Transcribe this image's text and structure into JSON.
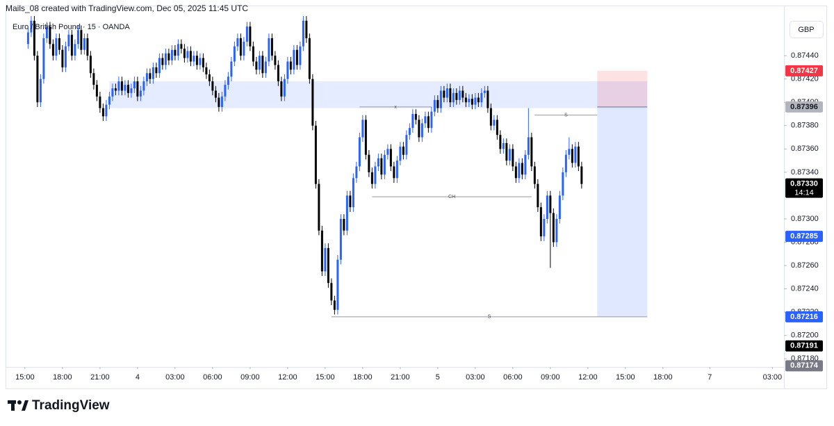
{
  "header": {
    "credit": "Mails_08 created with TradingView.com, Dec 05, 2025 11:45 UTC",
    "symbol": "Euro / British Pound · 15 · OANDA",
    "currency": "GBP",
    "logo": "TradingView"
  },
  "chart_data": {
    "type": "candlestick",
    "up_color": "#2962ff",
    "down_color": "#000000",
    "grid": false,
    "xlim": [
      -6.2,
      242.7
    ],
    "ylim": [
      0.87173,
      0.87483
    ],
    "xticks": [
      {
        "value": 0,
        "label": "15:00"
      },
      {
        "value": 12,
        "label": "18:00"
      },
      {
        "value": 24,
        "label": "21:00"
      },
      {
        "value": 36,
        "label": "4"
      },
      {
        "value": 48,
        "label": "03:00"
      },
      {
        "value": 60,
        "label": "06:00"
      },
      {
        "value": 72,
        "label": "09:00"
      },
      {
        "value": 84,
        "label": "12:00"
      },
      {
        "value": 96,
        "label": "15:00"
      },
      {
        "value": 108,
        "label": "18:00"
      },
      {
        "value": 120,
        "label": "21:00"
      },
      {
        "value": 132,
        "label": "5"
      },
      {
        "value": 144,
        "label": "03:00"
      },
      {
        "value": 156,
        "label": "06:00"
      },
      {
        "value": 168,
        "label": "09:00"
      },
      {
        "value": 180,
        "label": "12:00"
      },
      {
        "value": 192,
        "label": "15:00"
      },
      {
        "value": 204,
        "label": "18:00"
      },
      {
        "value": 219,
        "label": "7"
      },
      {
        "value": 239,
        "label": "03:00"
      }
    ],
    "yticks": [
      {
        "value": 0.8744,
        "label": "0.87440"
      },
      {
        "value": 0.8742,
        "label": "0.87420"
      },
      {
        "value": 0.874,
        "label": "0.87400"
      },
      {
        "value": 0.8738,
        "label": "0.87380"
      },
      {
        "value": 0.8736,
        "label": "0.87360"
      },
      {
        "value": 0.8734,
        "label": "0.87340"
      },
      {
        "value": 0.873,
        "label": "0.87300"
      },
      {
        "value": 0.8728,
        "label": "0.87280"
      },
      {
        "value": 0.8726,
        "label": "0.87260"
      },
      {
        "value": 0.8724,
        "label": "0.87240"
      },
      {
        "value": 0.8722,
        "label": "0.87220"
      },
      {
        "value": 0.872,
        "label": "0.87200"
      },
      {
        "value": 0.8718,
        "label": "0.87180"
      }
    ],
    "x": [
      1,
      2,
      3,
      4,
      5,
      6,
      7,
      8,
      9,
      10,
      11,
      12,
      13,
      14,
      15,
      16,
      17,
      18,
      19,
      20,
      21,
      22,
      23,
      24,
      25,
      26,
      27,
      28,
      29,
      30,
      31,
      32,
      33,
      34,
      35,
      36,
      37,
      38,
      39,
      40,
      41,
      42,
      43,
      44,
      45,
      46,
      47,
      48,
      49,
      50,
      51,
      52,
      53,
      54,
      55,
      56,
      57,
      58,
      59,
      60,
      61,
      62,
      63,
      64,
      65,
      66,
      67,
      68,
      69,
      70,
      71,
      72,
      73,
      74,
      75,
      76,
      77,
      78,
      79,
      80,
      81,
      82,
      83,
      84,
      85,
      86,
      87,
      88,
      89,
      90,
      91,
      92,
      93,
      94,
      95,
      96,
      97,
      98,
      99,
      100,
      101,
      102,
      103,
      104,
      105,
      106,
      107,
      108,
      109,
      110,
      111,
      112,
      113,
      114,
      115,
      116,
      117,
      118,
      119,
      120,
      121,
      122,
      123,
      124,
      125,
      126,
      127,
      128,
      129,
      130,
      131,
      132,
      133,
      134,
      135,
      136,
      137,
      138,
      139,
      140,
      141,
      142,
      143,
      144,
      145,
      146,
      147,
      148,
      149,
      150,
      151,
      152,
      153,
      154,
      155,
      156,
      157,
      158,
      159,
      160,
      161,
      162,
      163,
      164,
      165,
      166,
      167,
      168,
      169,
      170,
      171,
      172,
      173,
      174,
      175,
      176,
      177,
      178
    ],
    "open": [
      0.8745,
      0.8746,
      0.8747,
      0.8744,
      0.874,
      0.8742,
      0.87455,
      0.87465,
      0.8745,
      0.8744,
      0.87455,
      0.87445,
      0.8743,
      0.87448,
      0.87458,
      0.8744,
      0.8745,
      0.87462,
      0.87445,
      0.87455,
      0.8744,
      0.87425,
      0.87415,
      0.87405,
      0.87395,
      0.87388,
      0.87398,
      0.87405,
      0.87412,
      0.8741,
      0.87418,
      0.8741,
      0.87415,
      0.87408,
      0.87412,
      0.87418,
      0.87405,
      0.8741,
      0.87418,
      0.87425,
      0.8742,
      0.8743,
      0.87425,
      0.87438,
      0.87432,
      0.87442,
      0.87436,
      0.87445,
      0.8744,
      0.8745,
      0.87446,
      0.87438,
      0.87444,
      0.87435,
      0.8744,
      0.87432,
      0.87438,
      0.8743,
      0.87424,
      0.87418,
      0.8741,
      0.87404,
      0.87396,
      0.87405,
      0.87415,
      0.87422,
      0.87435,
      0.87448,
      0.87455,
      0.8744,
      0.87452,
      0.87465,
      0.87448,
      0.87435,
      0.87428,
      0.8744,
      0.87425,
      0.87435,
      0.87455,
      0.8744,
      0.87432,
      0.87418,
      0.87405,
      0.8742,
      0.87435,
      0.87428,
      0.87445,
      0.87432,
      0.87448,
      0.8747,
      0.87455,
      0.8742,
      0.8738,
      0.8733,
      0.8729,
      0.87255,
      0.87275,
      0.87245,
      0.8723,
      0.87222,
      0.87265,
      0.873,
      0.8729,
      0.8732,
      0.8731,
      0.87335,
      0.87345,
      0.8737,
      0.87385,
      0.87355,
      0.8734,
      0.8733,
      0.87345,
      0.87352,
      0.87338,
      0.87355,
      0.8736,
      0.87345,
      0.87335,
      0.8735,
      0.87362,
      0.87355,
      0.87372,
      0.87378,
      0.8739,
      0.87385,
      0.8737,
      0.87382,
      0.87388,
      0.87378,
      0.87392,
      0.87402,
      0.87395,
      0.8741,
      0.87404,
      0.87412,
      0.874,
      0.87408,
      0.87402,
      0.8741,
      0.87404,
      0.874,
      0.87403,
      0.87398,
      0.87404,
      0.874,
      0.87408,
      0.8741,
      0.87395,
      0.8738,
      0.87385,
      0.87372,
      0.8736,
      0.87365,
      0.8735,
      0.8736,
      0.87345,
      0.87335,
      0.87348,
      0.87338,
      0.87355,
      0.8737,
      0.87345,
      0.8733,
      0.8731,
      0.87285,
      0.873,
      0.8732,
      0.87305,
      0.8728,
      0.873,
      0.8732,
      0.8734,
      0.87355,
      0.8736,
      0.87348,
      0.87362,
      0.87345
    ],
    "high": [
      0.87464,
      0.87474,
      0.87474,
      0.87444,
      0.87424,
      0.87459,
      0.87469,
      0.87469,
      0.87454,
      0.87459,
      0.87459,
      0.87449,
      0.87452,
      0.87462,
      0.87462,
      0.87454,
      0.87466,
      0.87466,
      0.87459,
      0.87459,
      0.87444,
      0.87429,
      0.87419,
      0.87409,
      0.87399,
      0.87402,
      0.87409,
      0.87416,
      0.87416,
      0.87422,
      0.87422,
      0.87419,
      0.87419,
      0.87416,
      0.87422,
      0.87422,
      0.87414,
      0.87422,
      0.87429,
      0.87429,
      0.87434,
      0.87434,
      0.87442,
      0.87442,
      0.87446,
      0.87446,
      0.87449,
      0.87449,
      0.87454,
      0.87454,
      0.8745,
      0.87448,
      0.87448,
      0.87444,
      0.87444,
      0.87442,
      0.87442,
      0.87434,
      0.87428,
      0.87422,
      0.87414,
      0.87408,
      0.87409,
      0.87419,
      0.87426,
      0.87439,
      0.87452,
      0.87459,
      0.87459,
      0.87456,
      0.87469,
      0.87469,
      0.87452,
      0.87439,
      0.87444,
      0.87444,
      0.87439,
      0.87459,
      0.87459,
      0.87444,
      0.87436,
      0.87422,
      0.87424,
      0.87439,
      0.87439,
      0.87449,
      0.87449,
      0.87452,
      0.87474,
      0.87474,
      0.87459,
      0.87424,
      0.87384,
      0.87334,
      0.87294,
      0.87279,
      0.87279,
      0.87249,
      0.87234,
      0.87269,
      0.87304,
      0.87304,
      0.87324,
      0.87324,
      0.87339,
      0.87349,
      0.87374,
      0.87389,
      0.87389,
      0.87359,
      0.87344,
      0.87349,
      0.87356,
      0.87356,
      0.87359,
      0.87364,
      0.87364,
      0.87349,
      0.87354,
      0.87366,
      0.87366,
      0.87376,
      0.87382,
      0.87394,
      0.87394,
      0.87389,
      0.87386,
      0.87392,
      0.87392,
      0.87396,
      0.87406,
      0.87406,
      0.87414,
      0.87414,
      0.87416,
      0.87416,
      0.87412,
      0.87412,
      0.87414,
      0.87414,
      0.87408,
      0.87407,
      0.87407,
      0.87408,
      0.87408,
      0.87412,
      0.87414,
      0.87414,
      0.87399,
      0.87389,
      0.87389,
      0.87376,
      0.87369,
      0.87369,
      0.87364,
      0.87364,
      0.87349,
      0.87352,
      0.87352,
      0.87359,
      0.87395,
      0.87374,
      0.87349,
      0.87334,
      0.87314,
      0.87304,
      0.87324,
      0.87324,
      0.87309,
      0.87304,
      0.87324,
      0.87344,
      0.87359,
      0.8737,
      0.87364,
      0.87366,
      0.87366,
      0.87349
    ],
    "low": [
      0.87446,
      0.87456,
      0.87436,
      0.87396,
      0.87396,
      0.87416,
      0.87451,
      0.87446,
      0.87436,
      0.87436,
      0.87441,
      0.87426,
      0.87426,
      0.87444,
      0.87436,
      0.87436,
      0.87446,
      0.87441,
      0.87441,
      0.87436,
      0.87421,
      0.87411,
      0.87401,
      0.87391,
      0.87384,
      0.87384,
      0.87394,
      0.87401,
      0.87406,
      0.87406,
      0.87406,
      0.87406,
      0.87404,
      0.87404,
      0.87408,
      0.87401,
      0.87401,
      0.87406,
      0.87414,
      0.87416,
      0.87416,
      0.87421,
      0.87421,
      0.87428,
      0.87428,
      0.87432,
      0.87432,
      0.87436,
      0.87436,
      0.87442,
      0.87434,
      0.87434,
      0.87431,
      0.87431,
      0.87428,
      0.87428,
      0.87426,
      0.8742,
      0.87414,
      0.87406,
      0.874,
      0.87392,
      0.87392,
      0.87401,
      0.87411,
      0.87418,
      0.87431,
      0.87444,
      0.87436,
      0.87436,
      0.87448,
      0.87444,
      0.87431,
      0.87424,
      0.87424,
      0.87421,
      0.87421,
      0.87431,
      0.87436,
      0.87428,
      0.87414,
      0.87401,
      0.87401,
      0.87416,
      0.87424,
      0.87424,
      0.87428,
      0.87428,
      0.87444,
      0.87451,
      0.87416,
      0.87376,
      0.87326,
      0.87286,
      0.87251,
      0.87251,
      0.87241,
      0.87226,
      0.87218,
      0.87218,
      0.87261,
      0.87286,
      0.87286,
      0.87306,
      0.87306,
      0.87331,
      0.87341,
      0.87366,
      0.87351,
      0.87336,
      0.87326,
      0.87326,
      0.87341,
      0.87334,
      0.87334,
      0.87351,
      0.87341,
      0.87331,
      0.87331,
      0.87346,
      0.87351,
      0.87351,
      0.87368,
      0.87374,
      0.87381,
      0.87366,
      0.87366,
      0.87378,
      0.87374,
      0.87374,
      0.87388,
      0.87391,
      0.87391,
      0.874,
      0.874,
      0.87396,
      0.87396,
      0.87398,
      0.87398,
      0.874,
      0.87396,
      0.87396,
      0.87394,
      0.87394,
      0.87396,
      0.87396,
      0.87404,
      0.87391,
      0.87376,
      0.87376,
      0.87368,
      0.87356,
      0.87356,
      0.87346,
      0.87346,
      0.87341,
      0.87331,
      0.87331,
      0.87334,
      0.87334,
      0.87351,
      0.87341,
      0.87326,
      0.87306,
      0.87281,
      0.87281,
      0.87296,
      0.87258,
      0.87276,
      0.87276,
      0.87296,
      0.87316,
      0.87336,
      0.87351,
      0.87344,
      0.87344,
      0.87341,
      0.87326
    ],
    "close": [
      0.8746,
      0.8747,
      0.8744,
      0.874,
      0.8742,
      0.87455,
      0.87465,
      0.8745,
      0.8744,
      0.87455,
      0.87445,
      0.8743,
      0.87448,
      0.87458,
      0.8744,
      0.8745,
      0.87462,
      0.87445,
      0.87455,
      0.8744,
      0.87425,
      0.87415,
      0.87405,
      0.87395,
      0.87388,
      0.87398,
      0.87405,
      0.87412,
      0.8741,
      0.87418,
      0.8741,
      0.87415,
      0.87408,
      0.87412,
      0.87418,
      0.87405,
      0.8741,
      0.87418,
      0.87425,
      0.8742,
      0.8743,
      0.87425,
      0.87438,
      0.87432,
      0.87442,
      0.87436,
      0.87445,
      0.8744,
      0.8745,
      0.87446,
      0.87438,
      0.87444,
      0.87435,
      0.8744,
      0.87432,
      0.87438,
      0.8743,
      0.87424,
      0.87418,
      0.8741,
      0.87404,
      0.87396,
      0.87405,
      0.87415,
      0.87422,
      0.87435,
      0.87448,
      0.87455,
      0.8744,
      0.87452,
      0.87465,
      0.87448,
      0.87435,
      0.87428,
      0.8744,
      0.87425,
      0.87435,
      0.87455,
      0.8744,
      0.87432,
      0.87418,
      0.87405,
      0.8742,
      0.87435,
      0.87428,
      0.87445,
      0.87432,
      0.87448,
      0.8747,
      0.87455,
      0.8742,
      0.8738,
      0.8733,
      0.8729,
      0.87255,
      0.87275,
      0.87245,
      0.8723,
      0.87222,
      0.87265,
      0.873,
      0.8729,
      0.8732,
      0.8731,
      0.87335,
      0.87345,
      0.8737,
      0.87385,
      0.87355,
      0.8734,
      0.8733,
      0.87345,
      0.87352,
      0.87338,
      0.87355,
      0.8736,
      0.87345,
      0.87335,
      0.8735,
      0.87362,
      0.87355,
      0.87372,
      0.87378,
      0.8739,
      0.87385,
      0.8737,
      0.87382,
      0.87388,
      0.87378,
      0.87392,
      0.87402,
      0.87395,
      0.8741,
      0.87404,
      0.87412,
      0.874,
      0.87408,
      0.87402,
      0.8741,
      0.87404,
      0.874,
      0.87403,
      0.87398,
      0.87404,
      0.874,
      0.87408,
      0.8741,
      0.87395,
      0.8738,
      0.87385,
      0.87372,
      0.8736,
      0.87365,
      0.8735,
      0.8736,
      0.87345,
      0.87335,
      0.87348,
      0.87338,
      0.87355,
      0.8737,
      0.87345,
      0.8733,
      0.8731,
      0.87285,
      0.873,
      0.8732,
      0.87305,
      0.8728,
      0.873,
      0.8732,
      0.8734,
      0.87355,
      0.8736,
      0.87348,
      0.87362,
      0.87345,
      0.8733
    ],
    "zone": {
      "x": [
        27,
        199
      ],
      "prices": [
        0.87418,
        0.87395
      ],
      "color": "#2962ff"
    },
    "levels": [
      {
        "label": "x",
        "price": 0.87396,
        "x": [
          107,
          130
        ]
      },
      {
        "label": "S",
        "price": 0.87389,
        "x": [
          163,
          183
        ]
      },
      {
        "label": "CH",
        "price": 0.87319,
        "x": [
          111,
          162
        ]
      },
      {
        "label": "S",
        "price": 0.87216,
        "x": [
          98,
          199
        ]
      }
    ],
    "position": {
      "x": [
        183,
        199
      ],
      "stop": 0.87427,
      "entry": 0.87396,
      "target": 0.87216
    },
    "price_labels": [
      {
        "value": 0.87427,
        "label": "0.87427",
        "color": "#f23645",
        "text_color": "#ffffff"
      },
      {
        "value": 0.87396,
        "label": "0.87396",
        "color": "#b2b5be",
        "text_color": "#131722"
      },
      {
        "value": 0.8733,
        "label": "0.87330",
        "sub": "14:14",
        "color": "#000000",
        "text_color": "#ffffff"
      },
      {
        "value": 0.87285,
        "label": "0.87285",
        "color": "#2962ff",
        "text_color": "#ffffff"
      },
      {
        "value": 0.87216,
        "label": "0.87216",
        "color": "#2962ff",
        "text_color": "#ffffff"
      },
      {
        "value": 0.87191,
        "label": "0.87191",
        "color": "#000000",
        "text_color": "#ffffff"
      },
      {
        "value": 0.87174,
        "label": "0.87174",
        "color": "#787b86",
        "text_color": "#ffffff"
      }
    ]
  }
}
